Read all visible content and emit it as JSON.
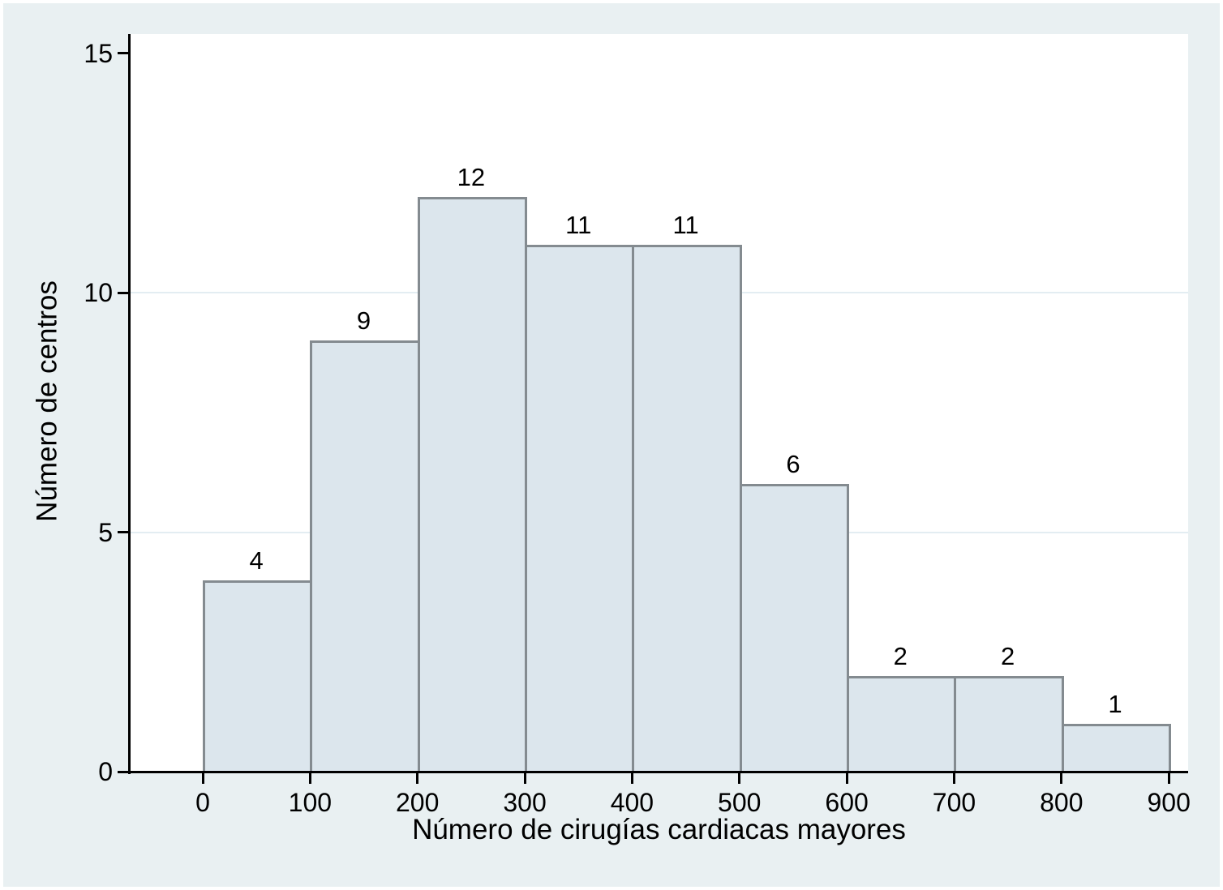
{
  "chart_data": {
    "type": "bar",
    "subtype": "histogram",
    "title": "",
    "xlabel": "Número de cirugías cardiacas mayores",
    "ylabel": "Número de centros",
    "bin_width": 100,
    "bin_starts": [
      0,
      100,
      200,
      300,
      400,
      500,
      600,
      700,
      800
    ],
    "values": [
      4,
      9,
      12,
      11,
      11,
      6,
      2,
      2,
      1
    ],
    "bar_value_labels": [
      "4",
      "9",
      "12",
      "11",
      "11",
      "6",
      "2",
      "2",
      "1"
    ],
    "x_ticks": [
      0,
      100,
      200,
      300,
      400,
      500,
      600,
      700,
      800,
      900
    ],
    "x_tick_labels": [
      "0",
      "100",
      "200",
      "300",
      "400",
      "500",
      "600",
      "700",
      "800",
      "900"
    ],
    "y_ticks": [
      0,
      5,
      10,
      15
    ],
    "y_tick_labels": [
      "0",
      "5",
      "10",
      "15"
    ],
    "grid_y": [
      5,
      10
    ],
    "xlim": [
      -68,
      918
    ],
    "ylim": [
      0,
      15.4
    ],
    "legend": "none",
    "colors": {
      "canvas_bg": "#e9f0f2",
      "plot_bg": "#ffffff",
      "bar_fill": "#dce6ed",
      "bar_border": "#848b90",
      "gridline": "#e3edf2",
      "axis": "#000000",
      "text": "#000000"
    }
  }
}
